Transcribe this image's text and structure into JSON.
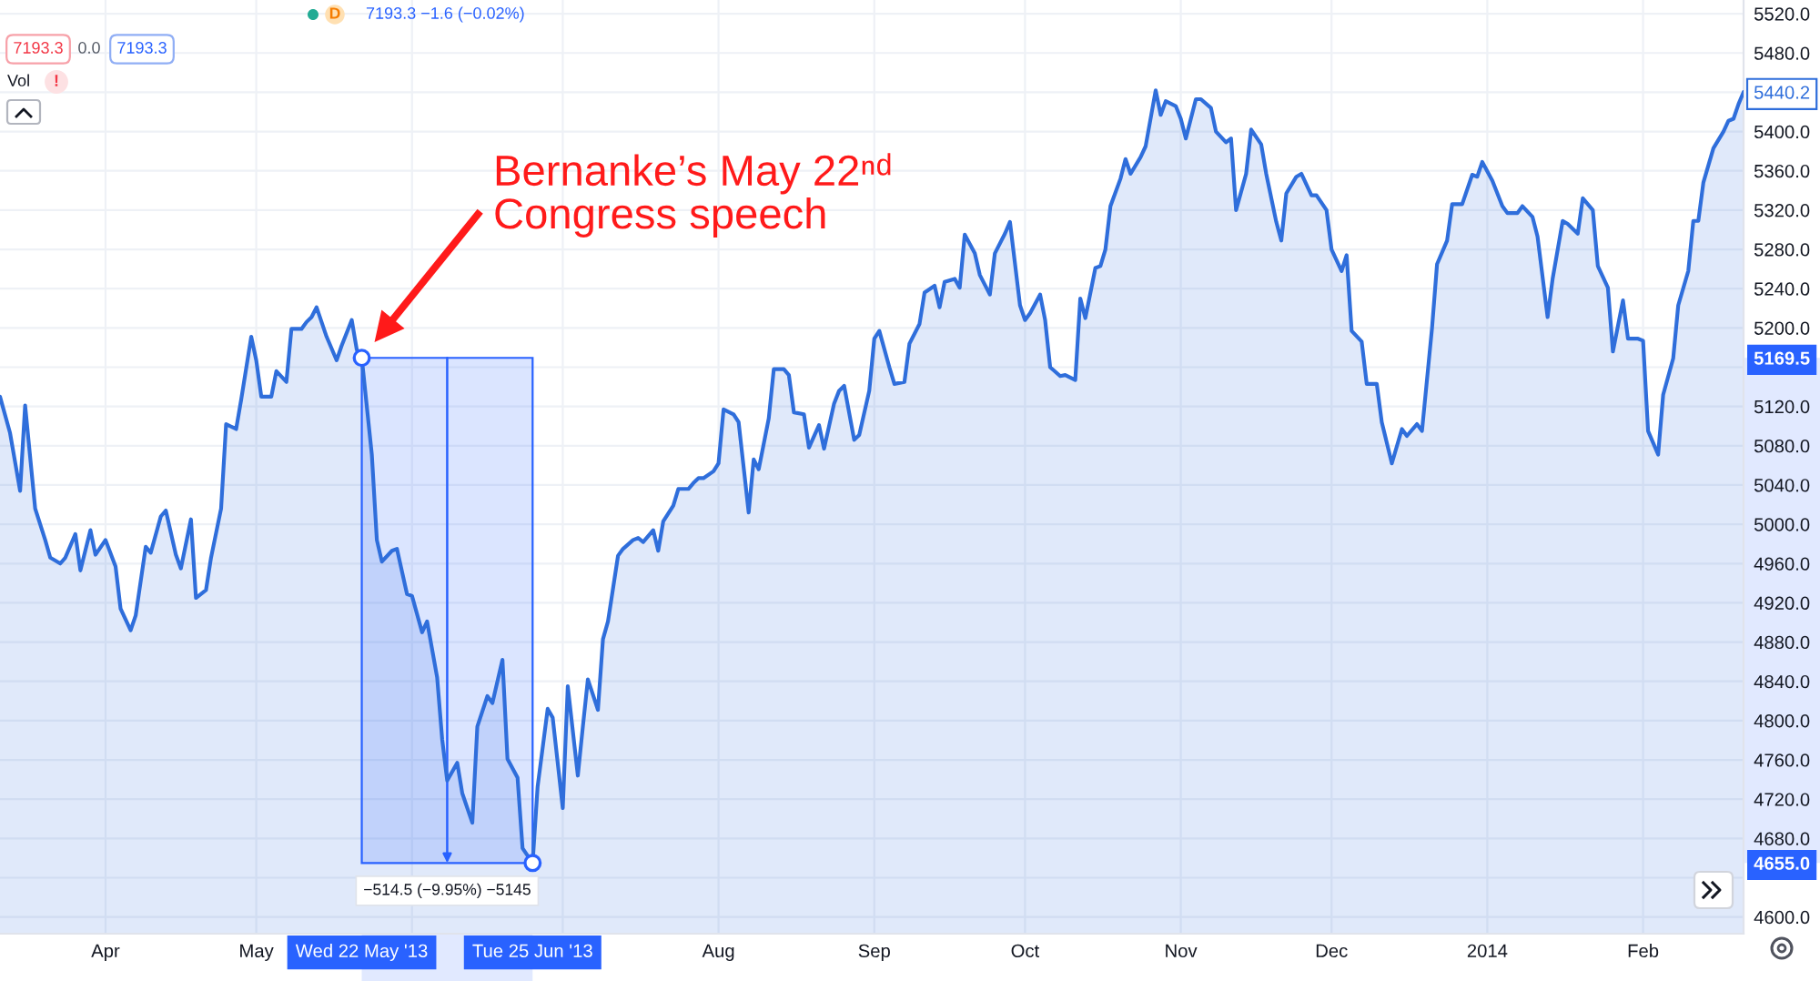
{
  "chart_data": {
    "type": "area",
    "annotations": [
      "Bernanke’s May 22ⁿᵈ\nCongress speech",
      "D",
      "7193.3 −1.6 (−0.02%)",
      "7193.3",
      "0.0",
      "7193.3",
      "Vol",
      "!"
    ],
    "x": [
      "2013-03-11",
      "2013-03-13",
      "2013-03-15",
      "2013-03-16",
      "2013-03-18",
      "2013-03-20",
      "2013-03-21",
      "2013-03-23",
      "2013-03-24",
      "2013-03-26",
      "2013-03-27",
      "2013-03-29",
      "2013-03-30",
      "2013-04-01",
      "2013-04-03",
      "2013-04-04",
      "2013-04-06",
      "2013-04-07",
      "2013-04-09",
      "2013-04-10",
      "2013-04-12",
      "2013-04-13",
      "2013-04-15",
      "2013-04-16",
      "2013-04-18",
      "2013-04-19",
      "2013-04-21",
      "2013-04-22",
      "2013-04-24",
      "2013-04-25",
      "2013-04-27",
      "2013-04-28",
      "2013-04-30",
      "2013-05-01",
      "2013-05-02",
      "2013-05-04",
      "2013-05-05",
      "2013-05-07",
      "2013-05-08",
      "2013-05-10",
      "2013-05-11",
      "2013-05-12",
      "2013-05-13",
      "2013-05-15",
      "2013-05-17",
      "2013-05-18",
      "2013-05-20",
      "2013-05-21",
      "2013-05-22",
      "2013-05-24",
      "2013-05-25",
      "2013-05-26",
      "2013-05-28",
      "2013-05-29",
      "2013-05-31",
      "2013-06-01",
      "2013-06-03",
      "2013-06-04",
      "2013-06-06",
      "2013-06-07",
      "2013-06-08",
      "2013-06-10",
      "2013-06-11",
      "2013-06-13",
      "2013-06-14",
      "2013-06-16",
      "2013-06-17",
      "2013-06-19",
      "2013-06-20",
      "2013-06-22",
      "2013-06-23",
      "2013-06-25",
      "2013-06-26",
      "2013-06-28",
      "2013-06-29",
      "2013-07-01",
      "2013-07-02",
      "2013-07-04",
      "2013-07-05",
      "2013-07-06",
      "2013-07-08",
      "2013-07-09",
      "2013-07-10",
      "2013-07-12",
      "2013-07-13",
      "2013-07-15",
      "2013-07-16",
      "2013-07-17",
      "2013-07-19",
      "2013-07-20",
      "2013-07-21",
      "2013-07-23",
      "2013-07-24",
      "2013-07-26",
      "2013-07-27",
      "2013-07-28",
      "2013-07-29",
      "2013-07-31",
      "2013-08-01",
      "2013-08-02",
      "2013-08-04",
      "2013-08-05",
      "2013-08-07",
      "2013-08-08",
      "2013-08-09",
      "2013-08-11",
      "2013-08-12",
      "2013-08-14",
      "2013-08-15",
      "2013-08-16",
      "2013-08-18",
      "2013-08-19",
      "2013-08-21",
      "2013-08-22",
      "2013-08-24",
      "2013-08-25",
      "2013-08-26",
      "2013-08-28",
      "2013-08-29",
      "2013-08-31",
      "2013-09-01",
      "2013-09-02",
      "2013-09-04",
      "2013-09-05",
      "2013-09-07",
      "2013-09-08",
      "2013-09-10",
      "2013-09-11",
      "2013-09-13",
      "2013-09-14",
      "2013-09-15",
      "2013-09-17",
      "2013-09-18",
      "2013-09-19",
      "2013-09-21",
      "2013-09-22",
      "2013-09-24",
      "2013-09-25",
      "2013-09-27",
      "2013-09-28",
      "2013-09-30",
      "2013-10-01",
      "2013-10-02",
      "2013-10-04",
      "2013-10-05",
      "2013-10-06",
      "2013-10-08",
      "2013-10-09",
      "2013-10-11",
      "2013-10-12",
      "2013-10-13",
      "2013-10-15",
      "2013-10-16",
      "2013-10-17",
      "2013-10-18",
      "2013-10-20",
      "2013-10-21",
      "2013-10-22",
      "2013-10-24",
      "2013-10-25",
      "2013-10-27",
      "2013-10-28",
      "2013-10-29",
      "2013-10-31",
      "2013-11-01",
      "2013-11-02",
      "2013-11-04",
      "2013-11-05",
      "2013-11-07",
      "2013-11-08",
      "2013-11-10",
      "2013-11-11",
      "2013-11-12",
      "2013-11-14",
      "2013-11-15",
      "2013-11-17",
      "2013-11-18",
      "2013-11-20",
      "2013-11-21",
      "2013-11-22",
      "2013-11-24",
      "2013-11-25",
      "2013-11-27",
      "2013-11-28",
      "2013-11-30",
      "2013-12-01",
      "2013-12-03",
      "2013-12-04",
      "2013-12-05",
      "2013-12-07",
      "2013-12-08",
      "2013-12-10",
      "2013-12-11",
      "2013-12-13",
      "2013-12-15",
      "2013-12-16",
      "2013-12-18",
      "2013-12-19",
      "2013-12-21",
      "2013-12-22",
      "2013-12-24",
      "2013-12-25",
      "2013-12-27",
      "2013-12-29",
      "2013-12-30",
      "2013-12-31",
      "2014-01-02",
      "2014-01-04",
      "2014-01-05",
      "2014-01-07",
      "2014-01-08",
      "2014-01-10",
      "2014-01-11",
      "2014-01-13",
      "2014-01-14",
      "2014-01-16",
      "2014-01-17",
      "2014-01-19",
      "2014-01-20",
      "2014-01-22",
      "2014-01-23",
      "2014-01-25",
      "2014-01-26",
      "2014-01-28",
      "2014-01-29",
      "2014-01-31",
      "2014-02-01",
      "2014-02-02",
      "2014-02-04",
      "2014-02-05",
      "2014-02-07",
      "2014-02-08",
      "2014-02-10",
      "2014-02-11",
      "2014-02-12",
      "2014-02-13",
      "2014-02-15",
      "2014-02-17",
      "2014-02-18",
      "2014-02-19",
      "2014-02-20",
      "2014-02-21"
    ],
    "series": [
      {
        "color": "#2f6edb",
        "values": [
          5130,
          5093,
          5034,
          5121,
          5016,
          4984,
          4966,
          4960,
          4966,
          4990,
          4953,
          4994,
          4969,
          4984,
          4957,
          4914,
          4892,
          4907,
          4977,
          4971,
          5008,
          5014,
          4969,
          4955,
          5005,
          4925,
          4933,
          4966,
          5016,
          5102,
          5097,
          5127,
          5191,
          5167,
          5130,
          5130,
          5156,
          5145,
          5199,
          5199,
          5206,
          5211,
          5221,
          5191,
          5167,
          5182,
          5208,
          5178,
          5169.5,
          5071,
          4984,
          4962,
          4973,
          4975,
          4929,
          4927,
          4890,
          4901,
          4844,
          4781,
          4739,
          4757,
          4726,
          4696,
          4794,
          4825,
          4818,
          4862,
          4761,
          4742,
          4670,
          4655.0,
          4733,
          4812,
          4803,
          4711,
          4835,
          4744,
          4794,
          4842,
          4811,
          4883,
          4901,
          4968,
          4975,
          4984,
          4986,
          4982,
          4994,
          4973,
          5003,
          5019,
          5036,
          5036,
          5042,
          5047,
          5047,
          5054,
          5062,
          5117,
          5112,
          5104,
          5012,
          5066,
          5056,
          5108,
          5158,
          5158,
          5152,
          5114,
          5112,
          5078,
          5101,
          5077,
          5123,
          5136,
          5141,
          5086,
          5091,
          5136,
          5189,
          5197,
          5160,
          5143,
          5145,
          5184,
          5204,
          5236,
          5243,
          5221,
          5247,
          5250,
          5241,
          5295,
          5276,
          5254,
          5234,
          5276,
          5296,
          5308,
          5223,
          5208,
          5215,
          5234,
          5208,
          5160,
          5151,
          5152,
          5147,
          5230,
          5210,
          5261,
          5263,
          5280,
          5324,
          5352,
          5372,
          5357,
          5374,
          5385,
          5442,
          5417,
          5431,
          5426,
          5413,
          5393,
          5433,
          5433,
          5424,
          5400,
          5389,
          5393,
          5320,
          5357,
          5402,
          5387,
          5357,
          5308,
          5289,
          5337,
          5354,
          5357,
          5335,
          5335,
          5320,
          5280,
          5258,
          5274,
          5197,
          5186,
          5143,
          5143,
          5104,
          5062,
          5097,
          5090,
          5102,
          5095,
          5200,
          5265,
          5289,
          5326,
          5326,
          5356,
          5354,
          5369,
          5350,
          5324,
          5317,
          5317,
          5324,
          5313,
          5293,
          5211,
          5250,
          5309,
          5306,
          5296,
          5332,
          5320,
          5263,
          5241,
          5176,
          5228,
          5189,
          5189,
          5187,
          5095,
          5071,
          5132,
          5169,
          5223,
          5258,
          5309,
          5309,
          5348,
          5383,
          5400,
          5411,
          5413,
          5428,
          5440.2
        ]
      }
    ],
    "xlim": [
      "2013-03-11",
      "2014-02-21"
    ],
    "ylim": [
      4583,
      5534
    ],
    "xticks": [
      {
        "value": "2013-04-01",
        "label": "Apr"
      },
      {
        "value": "2013-05-01",
        "label": "May"
      },
      {
        "value": "2013-05-22",
        "label": "Wed 22 May '13"
      },
      {
        "value": "2013-06-01",
        "label": null
      },
      {
        "value": "2013-06-25",
        "label": "Tue 25 Jun '13"
      },
      {
        "value": "2013-07-01",
        "label": null
      },
      {
        "value": "2013-08-01",
        "label": "Aug"
      },
      {
        "value": "2013-09-01",
        "label": "Sep"
      },
      {
        "value": "2013-10-01",
        "label": "Oct"
      },
      {
        "value": "2013-11-01",
        "label": "Nov"
      },
      {
        "value": "2013-12-01",
        "label": "Dec"
      },
      {
        "value": "2014-01-01",
        "label": "2014"
      },
      {
        "value": "2014-02-01",
        "label": "Feb"
      }
    ],
    "yticks": [
      {
        "value": 4600,
        "label": "4600.0"
      },
      {
        "value": 4640,
        "label": null
      },
      {
        "value": 4655.0,
        "label": "4655.0"
      },
      {
        "value": 4680,
        "label": "4680.0"
      },
      {
        "value": 4720,
        "label": "4720.0"
      },
      {
        "value": 4760,
        "label": "4760.0"
      },
      {
        "value": 4800,
        "label": "4800.0"
      },
      {
        "value": 4840,
        "label": "4840.0"
      },
      {
        "value": 4880,
        "label": "4880.0"
      },
      {
        "value": 4920,
        "label": "4920.0"
      },
      {
        "value": 4960,
        "label": "4960.0"
      },
      {
        "value": 5000,
        "label": "5000.0"
      },
      {
        "value": 5040,
        "label": "5040.0"
      },
      {
        "value": 5080,
        "label": "5080.0"
      },
      {
        "value": 5120,
        "label": "5120.0"
      },
      {
        "value": 5160,
        "label": null
      },
      {
        "value": 5169.5,
        "label": "5169.5"
      },
      {
        "value": 5200,
        "label": "5200.0"
      },
      {
        "value": 5240,
        "label": "5240.0"
      },
      {
        "value": 5280,
        "label": "5280.0"
      },
      {
        "value": 5320,
        "label": "5320.0"
      },
      {
        "value": 5360,
        "label": "5360.0"
      },
      {
        "value": 5400,
        "label": "5400.0"
      },
      {
        "value": 5440,
        "label": null
      },
      {
        "value": 5440.2,
        "label": "5440.2"
      },
      {
        "value": 5480,
        "label": "5480.0"
      },
      {
        "value": 5520,
        "label": "5520.0"
      }
    ],
    "grid": true,
    "bands": [
      {
        "axis": "x",
        "from": "2013-05-22",
        "to": "2013-06-25",
        "label": "−514.5 (−9.95%) −5145",
        "color": "#2962ff"
      }
    ]
  }
}
